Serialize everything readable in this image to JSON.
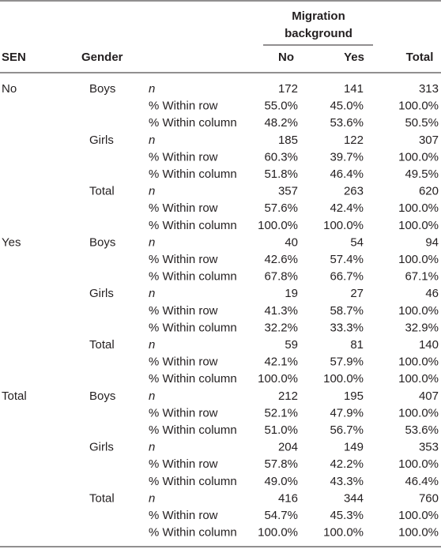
{
  "table": {
    "header": {
      "sen": "SEN",
      "gender": "Gender",
      "group": "Migration background",
      "no": "No",
      "yes": "Yes",
      "total": "Total"
    },
    "groups": [
      {
        "sen": "No",
        "genders": [
          {
            "gender": "Boys",
            "rows": [
              {
                "stat": "n",
                "values": [
                  "172",
                  "141",
                  "313"
                ]
              },
              {
                "stat": "% Within row",
                "values": [
                  "55.0%",
                  "45.0%",
                  "100.0%"
                ]
              },
              {
                "stat": "% Within column",
                "values": [
                  "48.2%",
                  "53.6%",
                  "50.5%"
                ]
              }
            ]
          },
          {
            "gender": "Girls",
            "rows": [
              {
                "stat": "n",
                "values": [
                  "185",
                  "122",
                  "307"
                ]
              },
              {
                "stat": "% Within row",
                "values": [
                  "60.3%",
                  "39.7%",
                  "100.0%"
                ]
              },
              {
                "stat": "% Within column",
                "values": [
                  "51.8%",
                  "46.4%",
                  "49.5%"
                ]
              }
            ]
          },
          {
            "gender": "Total",
            "rows": [
              {
                "stat": "n",
                "values": [
                  "357",
                  "263",
                  "620"
                ]
              },
              {
                "stat": "% Within row",
                "values": [
                  "57.6%",
                  "42.4%",
                  "100.0%"
                ]
              },
              {
                "stat": "% Within column",
                "values": [
                  "100.0%",
                  "100.0%",
                  "100.0%"
                ]
              }
            ]
          }
        ]
      },
      {
        "sen": "Yes",
        "genders": [
          {
            "gender": "Boys",
            "rows": [
              {
                "stat": "n",
                "values": [
                  "40",
                  "54",
                  "94"
                ]
              },
              {
                "stat": "% Within row",
                "values": [
                  "42.6%",
                  "57.4%",
                  "100.0%"
                ]
              },
              {
                "stat": "% Within column",
                "values": [
                  "67.8%",
                  "66.7%",
                  "67.1%"
                ]
              }
            ]
          },
          {
            "gender": "Girls",
            "rows": [
              {
                "stat": "n",
                "values": [
                  "19",
                  "27",
                  "46"
                ]
              },
              {
                "stat": "% Within row",
                "values": [
                  "41.3%",
                  "58.7%",
                  "100.0%"
                ]
              },
              {
                "stat": "% Within column",
                "values": [
                  "32.2%",
                  "33.3%",
                  "32.9%"
                ]
              }
            ]
          },
          {
            "gender": "Total",
            "rows": [
              {
                "stat": "n",
                "values": [
                  "59",
                  "81",
                  "140"
                ]
              },
              {
                "stat": "% Within row",
                "values": [
                  "42.1%",
                  "57.9%",
                  "100.0%"
                ]
              },
              {
                "stat": "% Within column",
                "values": [
                  "100.0%",
                  "100.0%",
                  "100.0%"
                ]
              }
            ]
          }
        ]
      },
      {
        "sen": "Total",
        "genders": [
          {
            "gender": "Boys",
            "rows": [
              {
                "stat": "n",
                "values": [
                  "212",
                  "195",
                  "407"
                ]
              },
              {
                "stat": "% Within row",
                "values": [
                  "52.1%",
                  "47.9%",
                  "100.0%"
                ]
              },
              {
                "stat": "% Within column",
                "values": [
                  "51.0%",
                  "56.7%",
                  "53.6%"
                ]
              }
            ]
          },
          {
            "gender": "Girls",
            "rows": [
              {
                "stat": "n",
                "values": [
                  "204",
                  "149",
                  "353"
                ]
              },
              {
                "stat": "% Within row",
                "values": [
                  "57.8%",
                  "42.2%",
                  "100.0%"
                ]
              },
              {
                "stat": "% Within column",
                "values": [
                  "49.0%",
                  "43.3%",
                  "46.4%"
                ]
              }
            ]
          },
          {
            "gender": "Total",
            "rows": [
              {
                "stat": "n",
                "values": [
                  "416",
                  "344",
                  "760"
                ]
              },
              {
                "stat": "% Within row",
                "values": [
                  "54.7%",
                  "45.3%",
                  "100.0%"
                ]
              },
              {
                "stat": "% Within column",
                "values": [
                  "100.0%",
                  "100.0%",
                  "100.0%"
                ]
              }
            ]
          }
        ]
      }
    ]
  }
}
